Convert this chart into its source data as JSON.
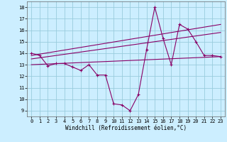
{
  "xlabel": "Windchill (Refroidissement éolien,°C)",
  "background_color": "#cceeff",
  "grid_color": "#99ccdd",
  "line_color": "#880066",
  "x_ticks": [
    0,
    1,
    2,
    3,
    4,
    5,
    6,
    7,
    8,
    9,
    10,
    11,
    12,
    13,
    14,
    15,
    16,
    17,
    18,
    19,
    20,
    21,
    22,
    23
  ],
  "y_ticks": [
    9,
    10,
    11,
    12,
    13,
    14,
    15,
    16,
    17,
    18
  ],
  "ylim": [
    8.5,
    18.5
  ],
  "xlim": [
    -0.5,
    23.5
  ],
  "line1": [
    14.0,
    13.8,
    12.9,
    13.1,
    13.1,
    12.8,
    12.5,
    13.0,
    12.1,
    12.1,
    9.6,
    9.5,
    9.0,
    10.4,
    14.3,
    18.0,
    15.3,
    13.0,
    16.5,
    16.1,
    15.0,
    13.8,
    13.8,
    13.7
  ],
  "line2_x": [
    0,
    23
  ],
  "line2_y": [
    13.8,
    16.5
  ],
  "line3_x": [
    0,
    23
  ],
  "line3_y": [
    13.5,
    15.8
  ],
  "line4_x": [
    0,
    23
  ],
  "line4_y": [
    13.0,
    13.7
  ]
}
